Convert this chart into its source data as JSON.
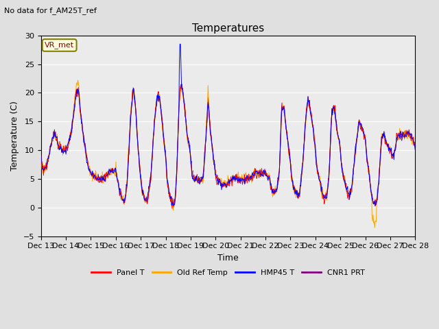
{
  "title": "Temperatures",
  "suptitle": "No data for f_AM25T_ref",
  "ylabel": "Temperature (C)",
  "xlabel": "Time",
  "ylim": [
    -5,
    30
  ],
  "legend_entries": [
    "Panel T",
    "Old Ref Temp",
    "HMP45 T",
    "CNR1 PRT"
  ],
  "legend_colors": [
    "red",
    "orange",
    "blue",
    "purple"
  ],
  "vr_met_label": "VR_met",
  "x_tick_labels": [
    "Dec 13",
    "Dec 14",
    "Dec 15",
    "Dec 16",
    "Dec 17",
    "Dec 18",
    "Dec 19",
    "Dec 20",
    "Dec 21",
    "Dec 22",
    "Dec 23",
    "Dec 24",
    "Dec 25",
    "Dec 26",
    "Dec 27",
    "Dec 28"
  ],
  "bg_color": "#e0e0e0",
  "plot_bg_color": "#ebebeb",
  "grid_color": "#ffffff"
}
